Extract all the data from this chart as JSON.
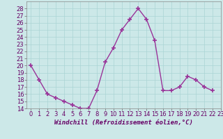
{
  "x": [
    0,
    1,
    2,
    3,
    4,
    5,
    6,
    7,
    8,
    9,
    10,
    11,
    12,
    13,
    14,
    15,
    16,
    17,
    18,
    19,
    20,
    21,
    22
  ],
  "y": [
    20,
    18,
    16,
    15.5,
    15,
    14.5,
    14,
    14,
    16.5,
    20.5,
    22.5,
    25,
    26.5,
    28,
    26.5,
    23.5,
    16.5,
    16.5,
    17,
    18.5,
    18,
    17,
    16.5
  ],
  "line_color": "#993399",
  "marker": "+",
  "marker_size": 4,
  "bg_color": "#cce8e8",
  "grid_color": "#aad4d4",
  "xlabel": "Windchill (Refroidissement éolien,°C)",
  "ylim": [
    14,
    29
  ],
  "xlim": [
    -0.5,
    23
  ],
  "yticks": [
    14,
    15,
    16,
    17,
    18,
    19,
    20,
    21,
    22,
    23,
    24,
    25,
    26,
    27,
    28
  ],
  "xticks": [
    0,
    1,
    2,
    3,
    4,
    5,
    6,
    7,
    8,
    9,
    10,
    11,
    12,
    13,
    14,
    15,
    16,
    17,
    18,
    19,
    20,
    21,
    22,
    23
  ],
  "xlabel_fontsize": 6.5,
  "tick_fontsize": 6,
  "line_width": 1.0
}
